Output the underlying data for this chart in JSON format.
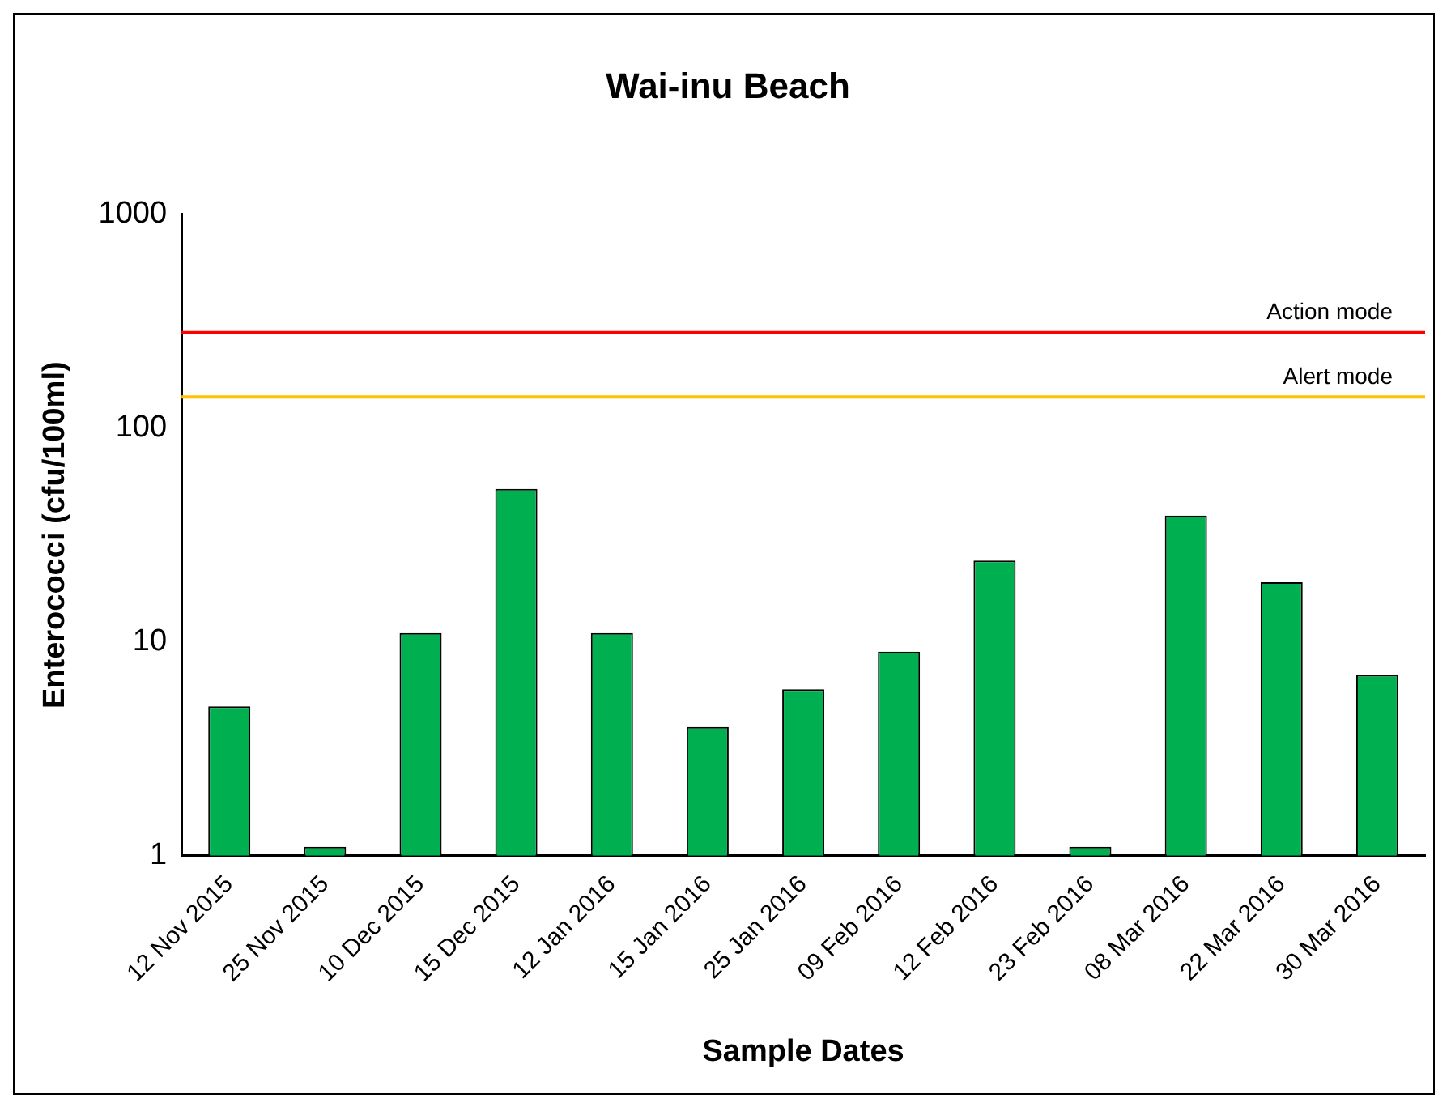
{
  "chart_data": {
    "type": "bar",
    "title": "Wai-inu Beach",
    "xlabel": "Sample Dates",
    "ylabel": "Enterococci (cfu/100ml)",
    "categories": [
      "12 Nov 2015",
      "25 Nov 2015",
      "10 Dec 2015",
      "15 Dec 2015",
      "12 Jan 2016",
      "15 Jan 2016",
      "25 Jan 2016",
      "09 Feb 2016",
      "12 Feb 2016",
      "23 Feb 2016",
      "08 Mar 2016",
      "22 Mar 2016",
      "30 Mar 2016"
    ],
    "values": [
      5,
      1.1,
      11,
      52,
      11,
      4,
      6,
      9,
      24,
      1.1,
      39,
      19,
      7
    ],
    "color": "#00b050",
    "log": true,
    "ylim": [
      1,
      1000
    ],
    "yticks": [
      1,
      10,
      100,
      1000
    ],
    "grid": false,
    "legend": false,
    "ref_lines": [
      {
        "axis": "y",
        "value": 280,
        "label": "Action mode",
        "color": "#ff0000"
      },
      {
        "axis": "y",
        "value": 140,
        "label": "Alert mode",
        "color": "#ffc000"
      }
    ]
  }
}
